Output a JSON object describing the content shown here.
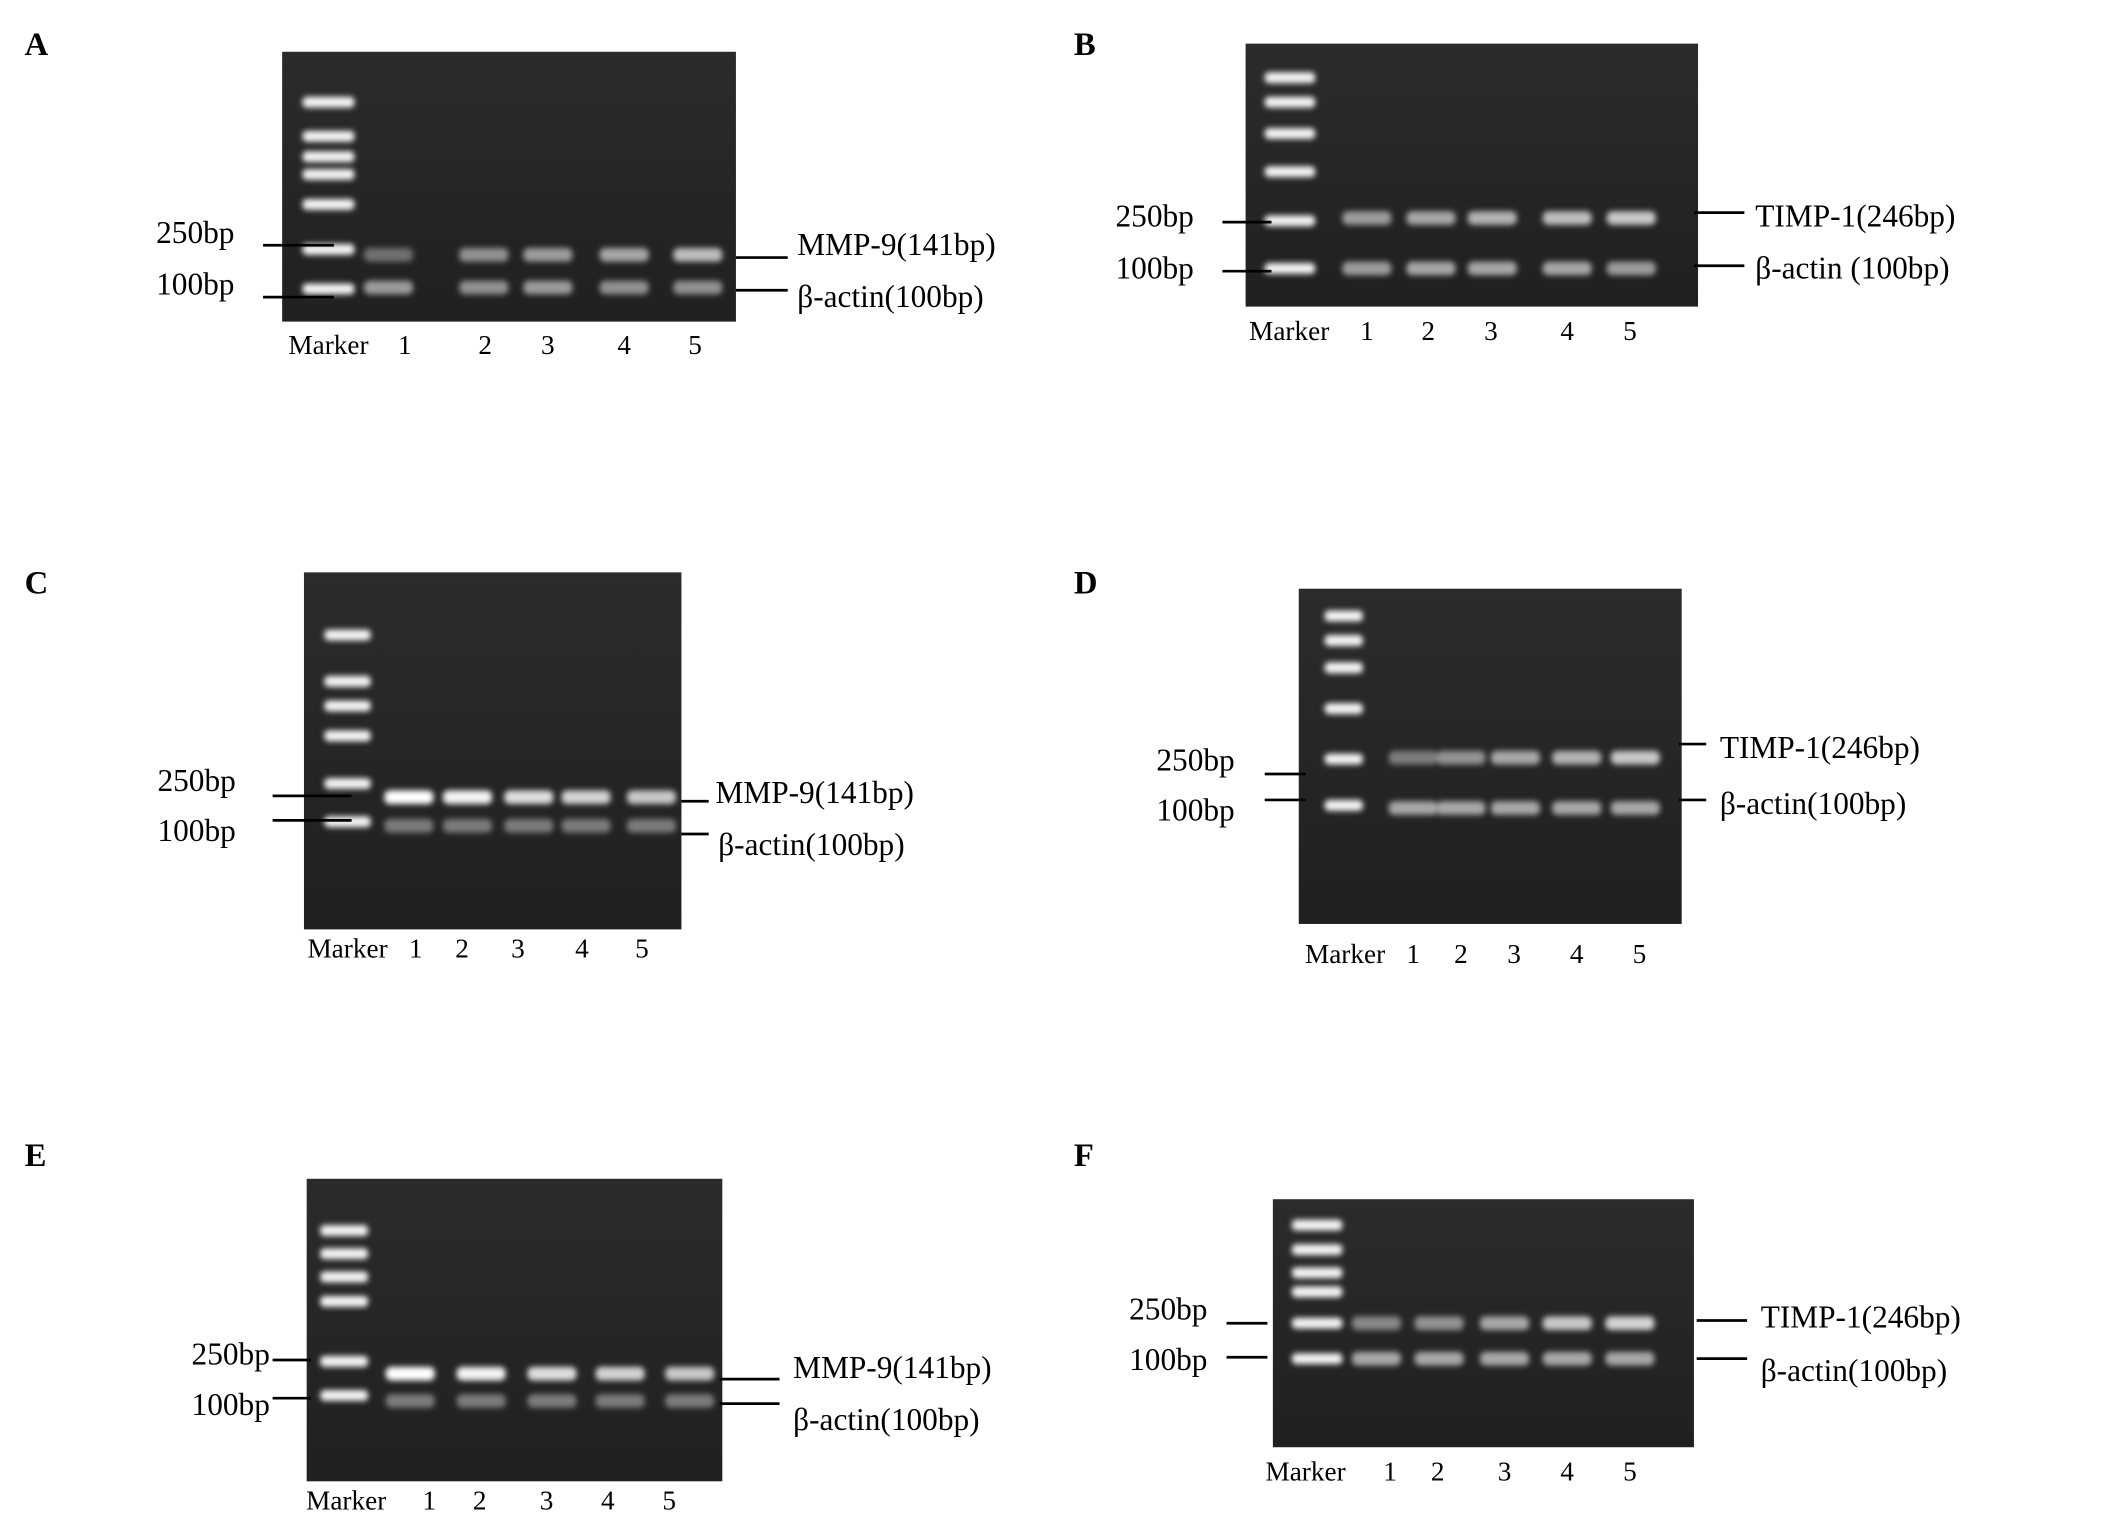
{
  "panels": [
    {
      "label": "A",
      "size_labels": [
        "250bp",
        "100bp"
      ],
      "band_labels": [
        "MMP-9(141bp)",
        "β-actin(100bp)"
      ],
      "lanes": [
        "Marker",
        "1",
        "2",
        "3",
        "4",
        "5"
      ]
    },
    {
      "label": "B",
      "size_labels": [
        "250bp",
        "100bp"
      ],
      "band_labels": [
        "TIMP-1(246bp)",
        "β-actin (100bp)"
      ],
      "lanes": [
        "Marker",
        "1",
        "2",
        "3",
        "4",
        "5"
      ]
    },
    {
      "label": "C",
      "size_labels": [
        "250bp",
        "100bp"
      ],
      "band_labels": [
        "MMP-9(141bp)",
        "β-actin(100bp)"
      ],
      "lanes": [
        "Marker",
        "1",
        "2",
        "3",
        "4",
        "5"
      ]
    },
    {
      "label": "D",
      "size_labels": [
        "250bp",
        "100bp"
      ],
      "band_labels": [
        "TIMP-1(246bp)",
        "β-actin(100bp)"
      ],
      "lanes": [
        "Marker",
        "1",
        "2",
        "3",
        "4",
        "5"
      ]
    },
    {
      "label": "E",
      "size_labels": [
        "250bp",
        "100bp"
      ],
      "band_labels": [
        "MMP-9(141bp)",
        "β-actin(100bp)"
      ],
      "lanes": [
        "Marker",
        "1",
        "2",
        "3",
        "4",
        "5"
      ]
    },
    {
      "label": "F",
      "size_labels": [
        "250bp",
        "100bp"
      ],
      "band_labels": [
        "TIMP-1(246bp)",
        "β-actin(100bp)"
      ],
      "lanes": [
        "Marker",
        "1",
        "2",
        "3",
        "4",
        "5"
      ]
    }
  ]
}
